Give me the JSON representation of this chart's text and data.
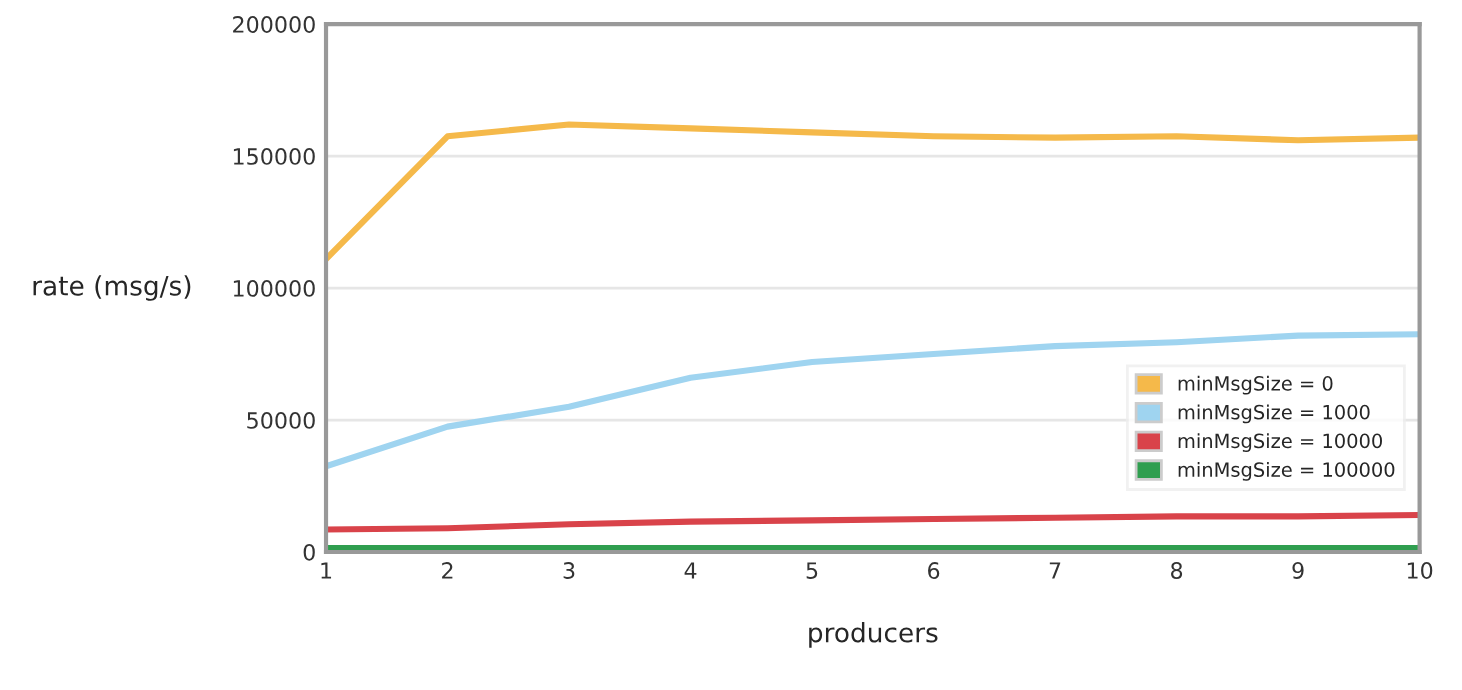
{
  "chart_data": {
    "type": "line",
    "xlabel": "producers",
    "ylabel": "rate (msg/s)",
    "x": [
      1,
      2,
      3,
      4,
      5,
      6,
      7,
      8,
      9,
      10
    ],
    "xlim": [
      1,
      10
    ],
    "xticks": [
      1,
      2,
      3,
      4,
      5,
      6,
      7,
      8,
      9,
      10
    ],
    "ylim": [
      0,
      200000
    ],
    "yticks": [
      0,
      50000,
      100000,
      150000,
      200000
    ],
    "grid": "y",
    "legend": "lower right",
    "marker": "none",
    "line_style": "solid",
    "series": [
      {
        "name": "minMsgSize = 0",
        "color": "#f5b94a",
        "values": [
          111000,
          157500,
          162000,
          160500,
          159000,
          157500,
          157000,
          157500,
          156000,
          157000
        ]
      },
      {
        "name": "minMsgSize = 1000",
        "color": "#9fd4f0",
        "values": [
          32500,
          47500,
          55000,
          66000,
          72000,
          75000,
          78000,
          79500,
          82000,
          82500
        ]
      },
      {
        "name": "minMsgSize = 10000",
        "color": "#d9434a",
        "values": [
          8500,
          9000,
          10500,
          11500,
          12000,
          12500,
          13000,
          13500,
          13500,
          14000
        ]
      },
      {
        "name": "minMsgSize = 100000",
        "color": "#2f9e4f",
        "values": [
          1500,
          1500,
          1500,
          1500,
          1500,
          1500,
          1500,
          1500,
          1500,
          1500
        ]
      }
    ]
  }
}
